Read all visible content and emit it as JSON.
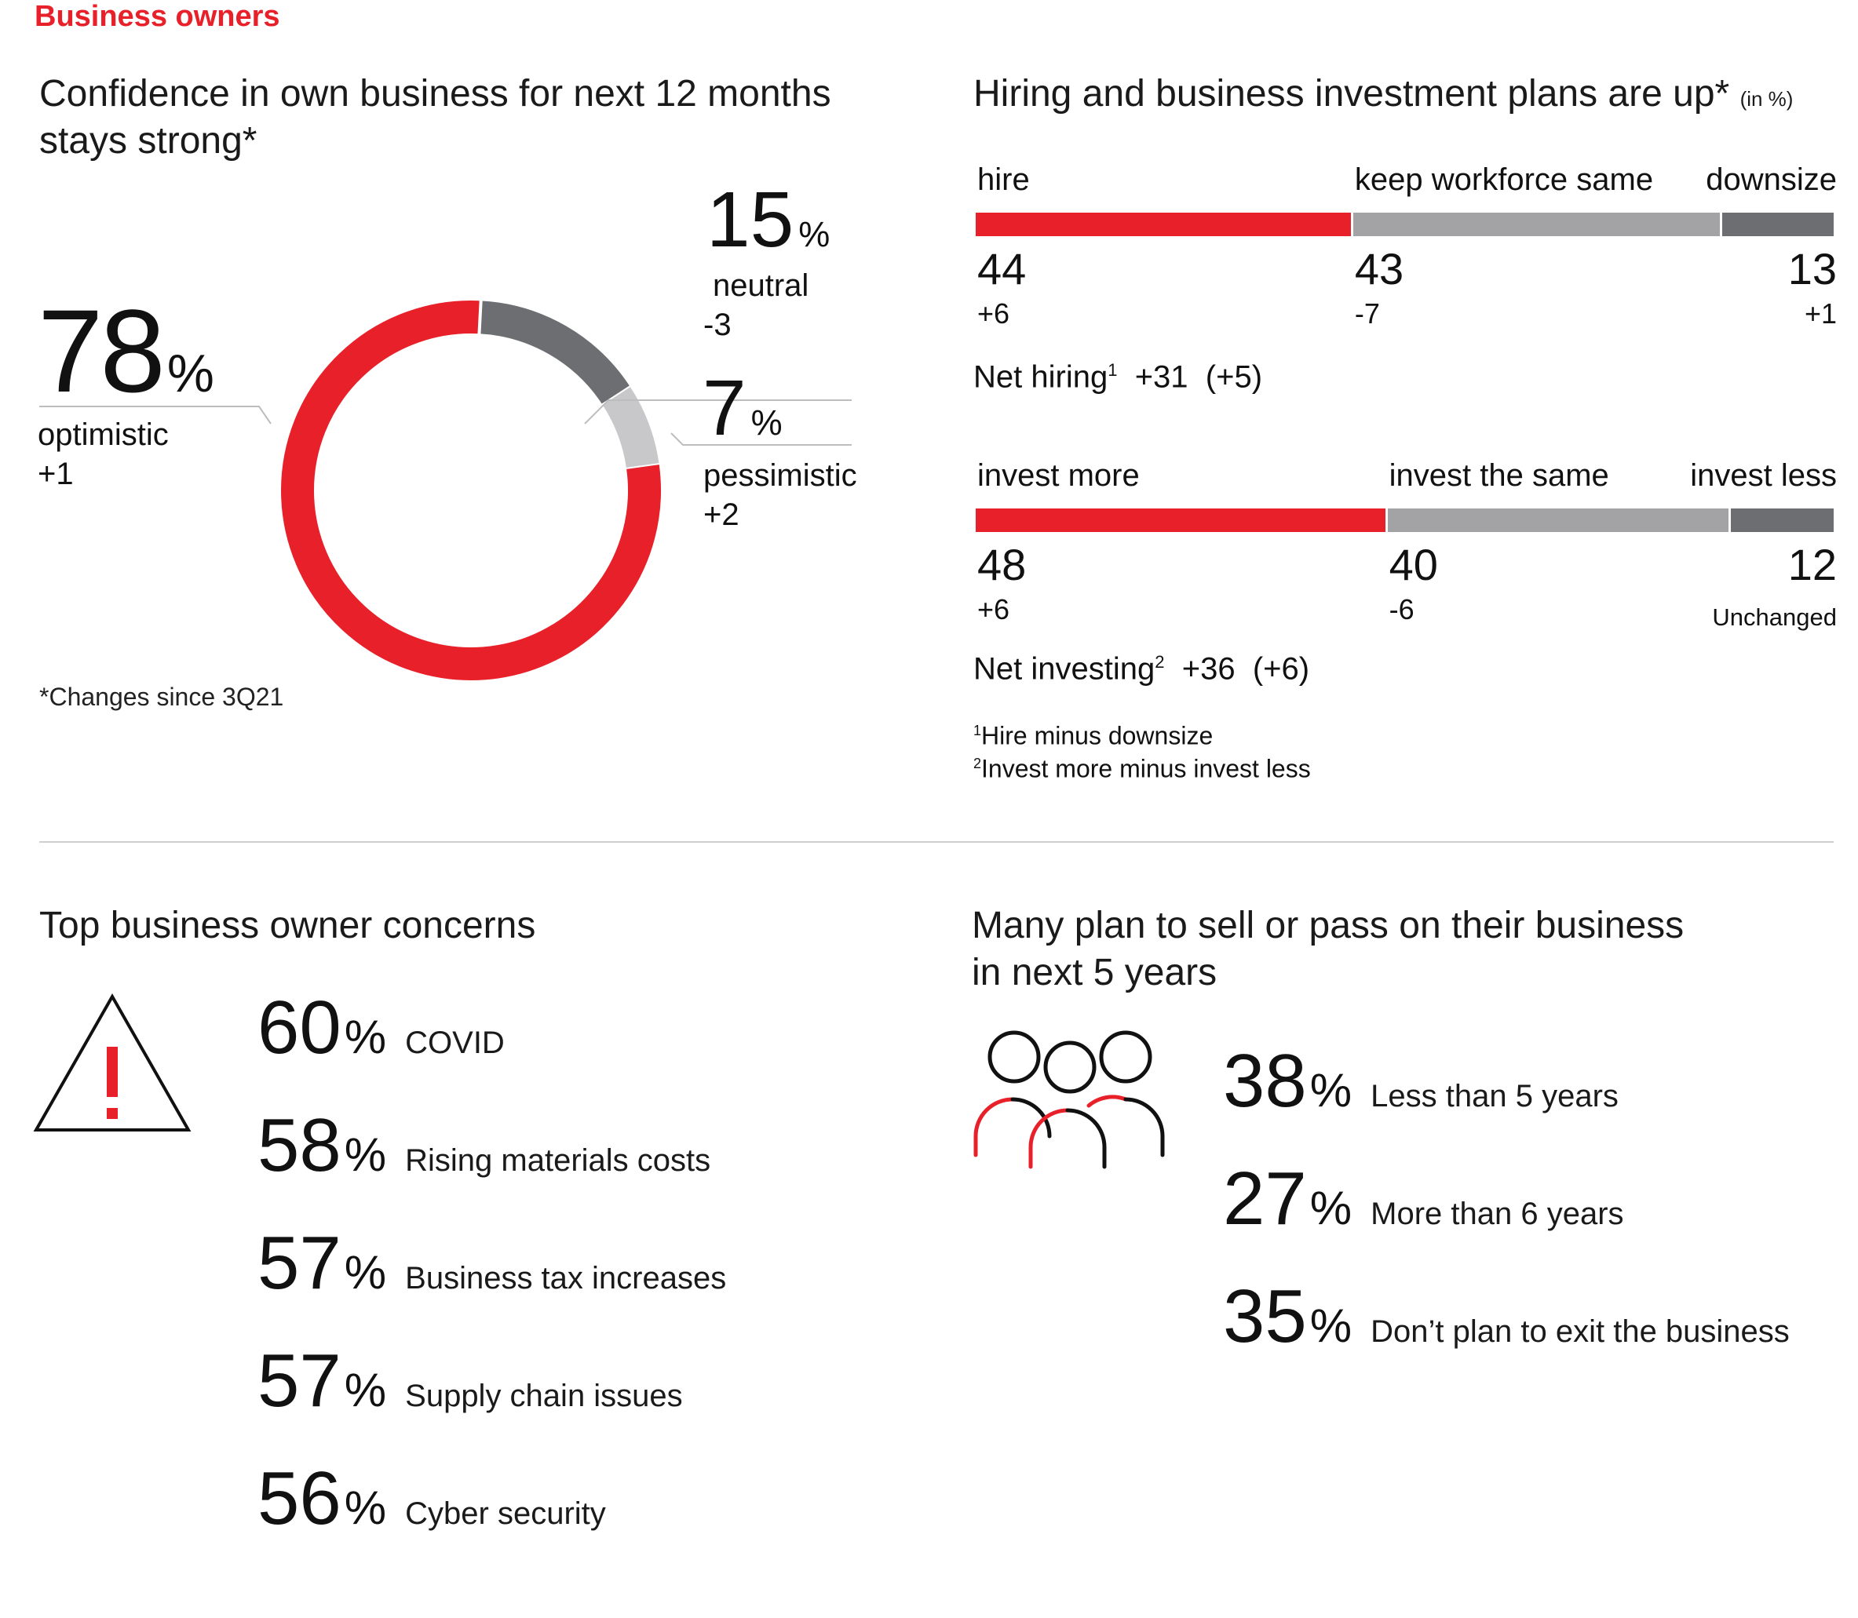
{
  "section_label": "Business owners",
  "confidence": {
    "title_line1": "Confidence in own business for next 12 months",
    "title_line2": "stays strong*",
    "note": "*Changes since 3Q21"
  },
  "hiring_panel": {
    "title": "Hiring and business investment plans are up*",
    "unit": "(in %)",
    "net_hiring": {
      "label": "Net hiring",
      "sup": "1",
      "value": "+31",
      "change": "(+5)"
    },
    "net_investing": {
      "label": "Net investing",
      "sup": "2",
      "value": "+36",
      "change": "(+6)"
    },
    "footnotes": [
      {
        "sup": "1",
        "text": "Hire minus downsize"
      },
      {
        "sup": "2",
        "text": "Invest more minus invest less"
      }
    ]
  },
  "concerns": {
    "title": "Top business owner concerns",
    "icon": "warning-triangle-icon",
    "items": [
      {
        "value": "60",
        "pct": "%",
        "label": "COVID"
      },
      {
        "value": "58",
        "pct": "%",
        "label": "Rising materials costs"
      },
      {
        "value": "57",
        "pct": "%",
        "label": "Business tax increases"
      },
      {
        "value": "57",
        "pct": "%",
        "label": "Supply chain issues"
      },
      {
        "value": "56",
        "pct": "%",
        "label": "Cyber security"
      }
    ]
  },
  "succession": {
    "title_line1": "Many plan to sell or pass on their business",
    "title_line2": "in next 5 years",
    "icon": "people-group-icon",
    "items": [
      {
        "value": "38",
        "pct": "%",
        "label": "Less than 5 years"
      },
      {
        "value": "27",
        "pct": "%",
        "label": "More than 6 years"
      },
      {
        "value": "35",
        "pct": "%",
        "label": "Don’t plan to exit the business"
      }
    ]
  },
  "colors": {
    "accent": "#e8202a",
    "mid_gray": "#a3a3a5",
    "dark_gray": "#6d6e71",
    "light_gray": "#c8c8ca"
  },
  "chart_data": [
    {
      "type": "pie",
      "title": "Confidence in own business for next 12 months stays strong*",
      "slices": [
        {
          "label": "optimistic",
          "value": 78,
          "pct": "%",
          "change": "+1",
          "color": "#e8202a"
        },
        {
          "label": "neutral",
          "value": 15,
          "pct": "%",
          "change": "-3",
          "color": "#6d6e71"
        },
        {
          "label": "pessimistic",
          "value": 7,
          "pct": "%",
          "change": "+2",
          "color": "#c8c8ca"
        }
      ]
    },
    {
      "type": "bar",
      "stacked": true,
      "orientation": "horizontal",
      "title": "Hiring and business investment plans are up*",
      "segments": [
        {
          "label": "hire",
          "value": 44,
          "change": "+6",
          "color": "#e8202a"
        },
        {
          "label": "keep workforce same",
          "value": 43,
          "change": "-7",
          "color": "#a3a3a5"
        },
        {
          "label": "downsize",
          "value": 13,
          "change": "+1",
          "color": "#6d6e71"
        }
      ]
    },
    {
      "type": "bar",
      "stacked": true,
      "orientation": "horizontal",
      "segments": [
        {
          "label": "invest more",
          "value": 48,
          "change": "+6",
          "color": "#e8202a"
        },
        {
          "label": "invest the same",
          "value": 40,
          "change": "-6",
          "color": "#a3a3a5"
        },
        {
          "label": "invest less",
          "value": 12,
          "change": "Unchanged",
          "color": "#6d6e71"
        }
      ]
    }
  ]
}
